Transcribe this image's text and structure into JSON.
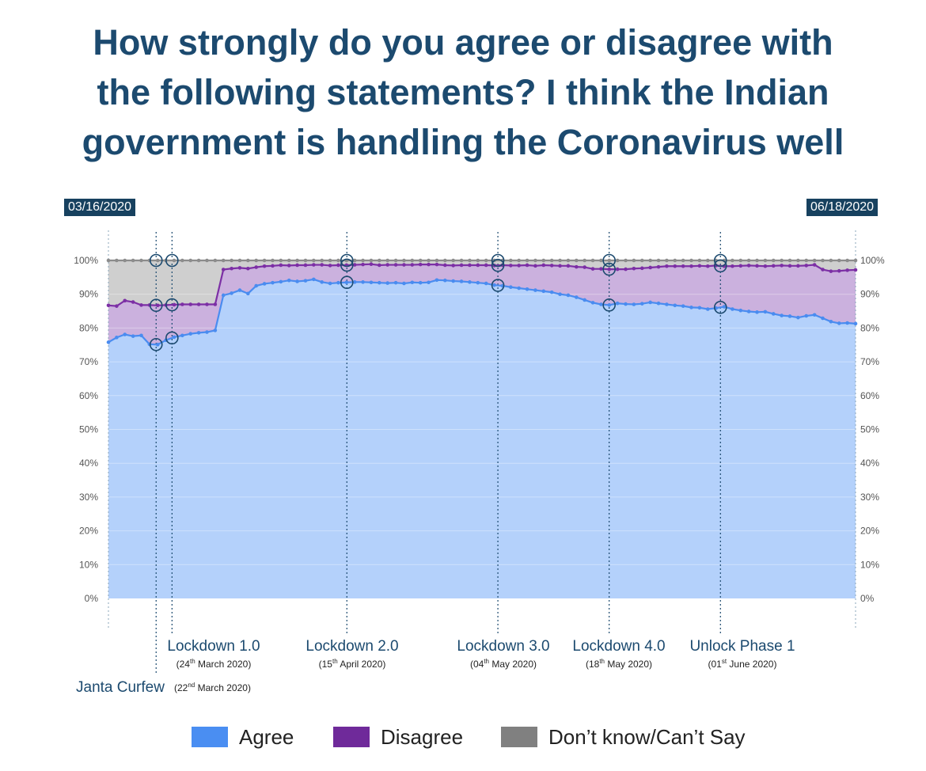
{
  "title_lines": [
    "How strongly do you agree or disagree with",
    "the following statements? I think the Indian",
    "government is handling the Coronavirus well"
  ],
  "date_start": "03/16/2020",
  "date_end": "06/18/2020",
  "colors": {
    "agree_fill": "#b4d1fb",
    "agree_line": "#4a8cf0",
    "disagree_fill": "#cbb1de",
    "disagree_line": "#7c2fa5",
    "dontknow_fill": "#cfcfcf",
    "dontknow_line": "#8c8c8c",
    "annotation": "#1c4a6f",
    "legend_agree": "#4a8ef2",
    "legend_disagree": "#6f2a9a",
    "legend_dontknow": "#808080"
  },
  "legend": [
    {
      "key": "agree",
      "label": "Agree"
    },
    {
      "key": "disagree",
      "label": "Disagree"
    },
    {
      "key": "dontknow",
      "label": "Don’t know/Can’t Say"
    }
  ],
  "chart_data": {
    "type": "area",
    "stacked": true,
    "title": "How strongly do you agree or disagree with the following statements? I think the Indian government is handling the Coronavirus well",
    "x_start": "2020-03-16",
    "x_end": "2020-06-18",
    "ylim": [
      0,
      100
    ],
    "yticks": [
      "0%",
      "10%",
      "20%",
      "30%",
      "40%",
      "50%",
      "60%",
      "70%",
      "80%",
      "90%",
      "100%"
    ],
    "grid": true,
    "legend_position": "bottom",
    "series": [
      {
        "name": "Agree",
        "key": "agree",
        "values": [
          75.8,
          77.2,
          78.1,
          77.6,
          77.8,
          75.2,
          75.1,
          76.4,
          77.3,
          77.8,
          78.3,
          78.6,
          78.8,
          79.3,
          89.7,
          90.3,
          91.2,
          90.2,
          92.5,
          93.1,
          93.4,
          93.7,
          94.1,
          93.8,
          94.0,
          94.4,
          93.6,
          93.2,
          93.4,
          93.5,
          93.6,
          93.6,
          93.5,
          93.4,
          93.3,
          93.4,
          93.2,
          93.5,
          93.4,
          93.5,
          94.2,
          94.1,
          93.9,
          93.8,
          93.6,
          93.4,
          93.2,
          92.7,
          92.5,
          92.1,
          91.8,
          91.5,
          91.2,
          90.9,
          90.6,
          90.0,
          89.7,
          89.1,
          88.3,
          87.5,
          87.0,
          86.8,
          87.3,
          87.1,
          87.0,
          87.2,
          87.6,
          87.3,
          87.0,
          86.7,
          86.5,
          86.1,
          86.0,
          85.6,
          85.9,
          86.3,
          85.6,
          85.2,
          84.9,
          84.7,
          84.8,
          84.2,
          83.7,
          83.5,
          83.1,
          83.6,
          83.9,
          82.9,
          81.9,
          81.4,
          81.5,
          81.3
        ]
      },
      {
        "name": "Disagree",
        "key": "disagree",
        "values": [
          10.9,
          9.3,
          10.0,
          10.1,
          9.0,
          11.6,
          11.6,
          10.4,
          9.6,
          9.2,
          8.7,
          8.4,
          8.2,
          7.7,
          7.6,
          7.3,
          6.6,
          7.4,
          5.5,
          5.2,
          5.0,
          4.9,
          4.4,
          4.8,
          4.6,
          4.3,
          5.1,
          5.3,
          5.2,
          5.1,
          5.1,
          5.2,
          5.4,
          5.2,
          5.4,
          5.3,
          5.5,
          5.2,
          5.4,
          5.3,
          4.6,
          4.5,
          4.6,
          4.8,
          5.0,
          5.2,
          5.4,
          5.8,
          6.1,
          6.4,
          6.7,
          7.1,
          7.2,
          7.7,
          7.9,
          8.4,
          8.7,
          9.0,
          9.7,
          10.0,
          10.5,
          10.6,
          10.1,
          10.3,
          10.6,
          10.5,
          10.3,
          10.8,
          11.3,
          11.6,
          11.8,
          12.2,
          12.4,
          12.7,
          12.6,
          12.0,
          12.7,
          13.2,
          13.6,
          13.7,
          13.5,
          14.2,
          14.8,
          14.9,
          15.3,
          14.9,
          14.8,
          14.4,
          14.9,
          15.5,
          15.6,
          15.9
        ]
      },
      {
        "name": "Don’t know/Can’t Say",
        "key": "dontknow",
        "values": [
          13.3,
          13.5,
          11.9,
          12.3,
          13.2,
          13.2,
          13.3,
          13.2,
          13.1,
          13.0,
          13.0,
          13.0,
          13.0,
          13.0,
          2.7,
          2.4,
          2.2,
          2.4,
          2.0,
          1.7,
          1.6,
          1.4,
          1.5,
          1.4,
          1.4,
          1.3,
          1.3,
          1.5,
          1.4,
          1.4,
          1.3,
          1.2,
          1.1,
          1.4,
          1.3,
          1.3,
          1.3,
          1.3,
          1.2,
          1.2,
          1.2,
          1.4,
          1.5,
          1.4,
          1.4,
          1.4,
          1.4,
          1.5,
          1.4,
          1.5,
          1.5,
          1.4,
          1.6,
          1.4,
          1.5,
          1.6,
          1.6,
          1.9,
          2.0,
          2.5,
          2.5,
          2.6,
          2.6,
          2.6,
          2.4,
          2.3,
          2.1,
          1.9,
          1.7,
          1.7,
          1.7,
          1.7,
          1.6,
          1.7,
          1.5,
          1.7,
          1.7,
          1.6,
          1.5,
          1.6,
          1.7,
          1.6,
          1.5,
          1.6,
          1.6,
          1.5,
          1.3,
          2.7,
          3.2,
          3.1,
          2.9,
          2.8
        ]
      }
    ],
    "events": [
      {
        "date": "2020-03-22",
        "label": "Janta Curfew",
        "sub": "(22nd March 2020)",
        "ord": "nd",
        "sub_pre": "(22",
        "sub_post": " March 2020)"
      },
      {
        "date": "2020-03-24",
        "label": "Lockdown 1.0",
        "sub": "(24th March 2020)",
        "ord": "th",
        "sub_pre": "(24",
        "sub_post": " March 2020)"
      },
      {
        "date": "2020-04-15",
        "label": "Lockdown 2.0",
        "sub": "(15th April 2020)",
        "ord": "th",
        "sub_pre": "(15",
        "sub_post": " April 2020)"
      },
      {
        "date": "2020-05-04",
        "label": "Lockdown 3.0",
        "sub": "(04th May 2020)",
        "ord": "th",
        "sub_pre": "(04",
        "sub_post": " May 2020)"
      },
      {
        "date": "2020-05-18",
        "label": "Lockdown 4.0",
        "sub": "(18th May 2020)",
        "ord": "th",
        "sub_pre": "(18",
        "sub_post": " May 2020)"
      },
      {
        "date": "2020-06-01",
        "label": "Unlock Phase 1",
        "sub": "(01st June 2020)",
        "ord": "st",
        "sub_pre": "(01",
        "sub_post": " June 2020)"
      }
    ]
  }
}
